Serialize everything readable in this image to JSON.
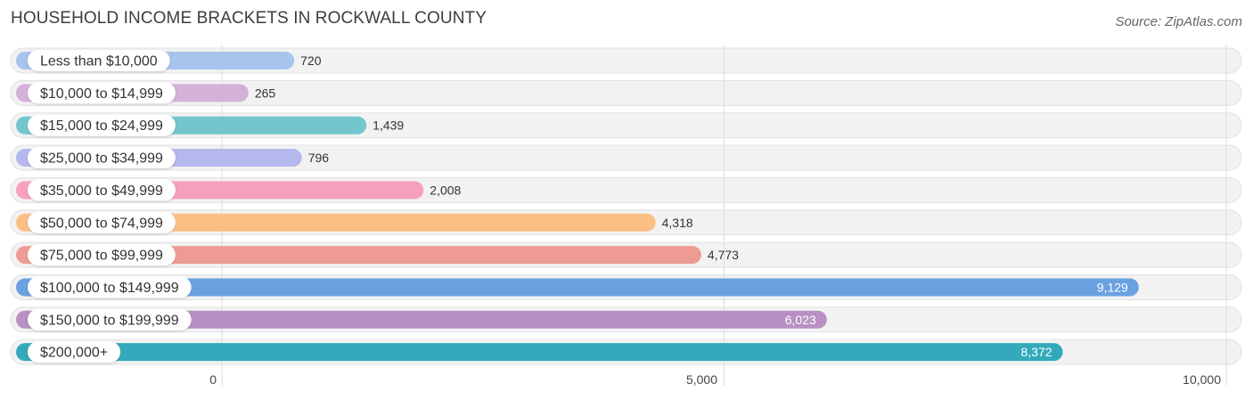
{
  "header": {
    "title": "HOUSEHOLD INCOME BRACKETS IN ROCKWALL COUNTY",
    "source": "Source: ZipAtlas.com"
  },
  "chart_data": {
    "type": "bar",
    "orientation": "horizontal",
    "title": "HOUSEHOLD INCOME BRACKETS IN ROCKWALL COUNTY",
    "xlabel": "",
    "ylabel": "",
    "xlim": [
      0,
      10000
    ],
    "ticks": [
      0,
      5000,
      10000
    ],
    "tick_labels": [
      "0",
      "5,000",
      "10,000"
    ],
    "grid": true,
    "categories": [
      "Less than $10,000",
      "$10,000 to $14,999",
      "$15,000 to $24,999",
      "$25,000 to $34,999",
      "$35,000 to $49,999",
      "$50,000 to $74,999",
      "$75,000 to $99,999",
      "$100,000 to $149,999",
      "$150,000 to $199,999",
      "$200,000+"
    ],
    "values": [
      720,
      265,
      1439,
      796,
      2008,
      4318,
      4773,
      9129,
      6023,
      8372
    ],
    "value_labels": [
      "720",
      "265",
      "1,439",
      "796",
      "2,008",
      "4,318",
      "4,773",
      "9,129",
      "6,023",
      "8,372"
    ],
    "colors": [
      "#a8c4ec",
      "#d4b2d8",
      "#73c6cc",
      "#b4b8ec",
      "#f7a0bd",
      "#fbbf85",
      "#ee9b93",
      "#6aa1e0",
      "#b890c4",
      "#33aabb"
    ]
  }
}
